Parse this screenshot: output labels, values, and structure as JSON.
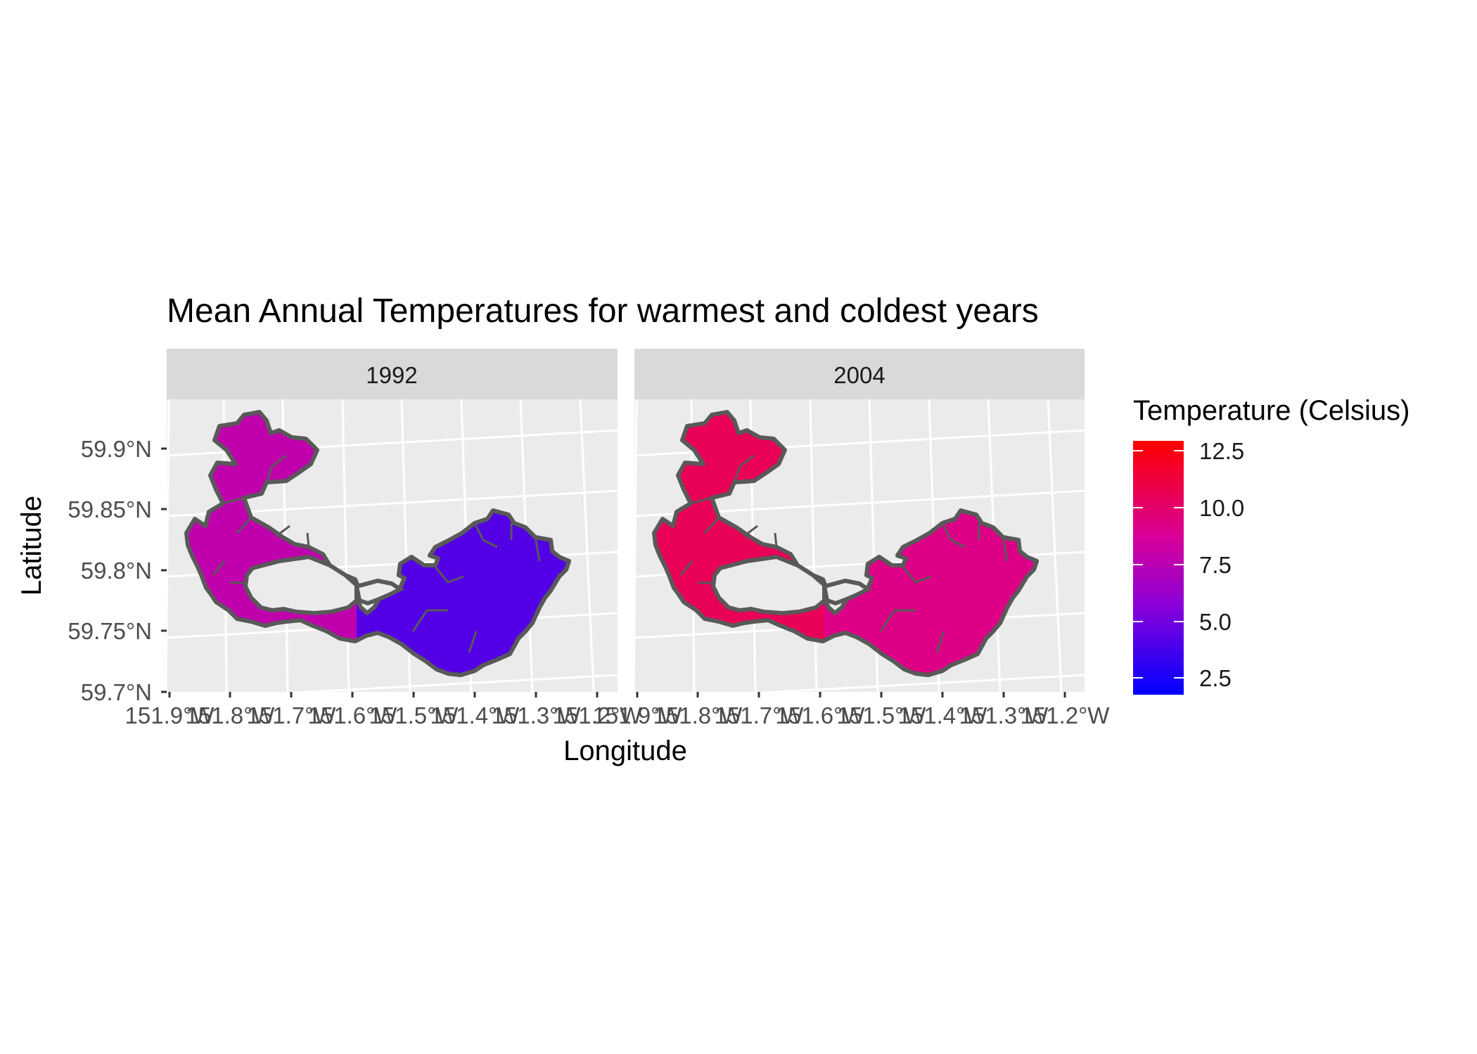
{
  "title": "Mean Annual Temperatures for warmest and coldest years",
  "x_axis_label": "Longitude",
  "y_axis_label": "Latitude",
  "x_tick_labels": [
    "151.9°W",
    "151.8°W",
    "151.7°W",
    "151.6°W",
    "151.5°W",
    "151.4°W",
    "151.3°W",
    "151.2°W"
  ],
  "y_tick_labels": [
    "59.7°N",
    "59.75°N",
    "59.8°N",
    "59.85°N",
    "59.9°N"
  ],
  "facets": [
    {
      "label": "1992",
      "mean_temp": 7.8,
      "east_temp": 4.2
    },
    {
      "label": "2004",
      "mean_temp": 10.6,
      "east_temp": 9.3
    }
  ],
  "legend": {
    "title": "Temperature (Celsius)",
    "labels": [
      "12.5",
      "10.0",
      "7.5",
      "5.0",
      "2.5"
    ],
    "min": 1.8,
    "max": 13.0,
    "low_color": "#0000ff",
    "high_color": "#ff0000"
  },
  "colors": {
    "panel_bg": "#ebebeb",
    "strip_bg": "#d9d9d9",
    "grid": "#ffffff",
    "region_outline": "#595959"
  }
}
